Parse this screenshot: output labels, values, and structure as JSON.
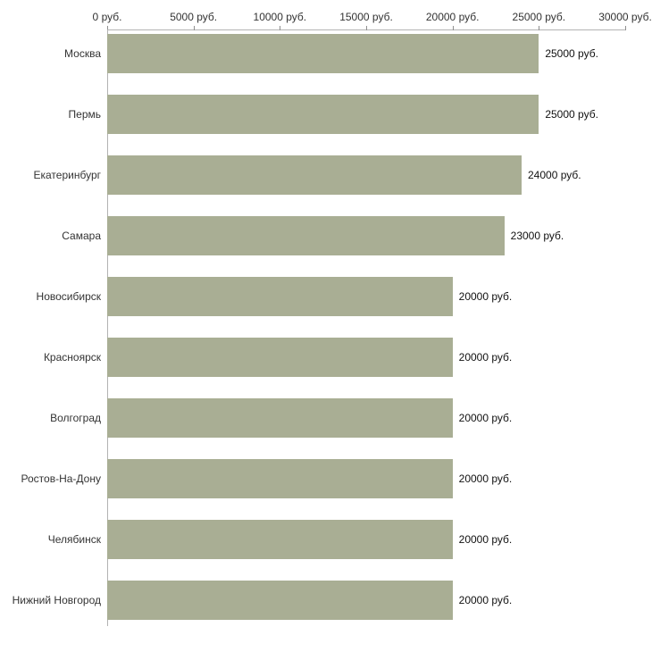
{
  "chart_data": {
    "type": "bar",
    "orientation": "horizontal",
    "title": "",
    "xlabel": "",
    "ylabel": "",
    "grid": false,
    "legend": false,
    "bar_color": "#a9ae94",
    "axis_line_color": "#b3b3b3",
    "categories": [
      "Москва",
      "Пермь",
      "Екатеринбург",
      "Самара",
      "Новосибирск",
      "Красноярск",
      "Волгоград",
      "Ростов-На-Дону",
      "Челябинск",
      "Нижний Новгород"
    ],
    "values": [
      25000,
      25000,
      24000,
      23000,
      20000,
      20000,
      20000,
      20000,
      20000,
      20000
    ],
    "value_labels": [
      "25000 руб.",
      "25000 руб.",
      "24000 руб.",
      "23000 руб.",
      "20000 руб.",
      "20000 руб.",
      "20000 руб.",
      "20000 руб.",
      "20000 руб.",
      "20000 руб."
    ],
    "x_axis": {
      "position": "top",
      "min": 0,
      "max": 30000,
      "ticks": [
        0,
        5000,
        10000,
        15000,
        20000,
        25000,
        30000
      ],
      "tick_labels": [
        "0 руб.",
        "5000 руб.",
        "10000 руб.",
        "15000 руб.",
        "20000 руб.",
        "25000 руб.",
        "30000 руб."
      ]
    }
  }
}
